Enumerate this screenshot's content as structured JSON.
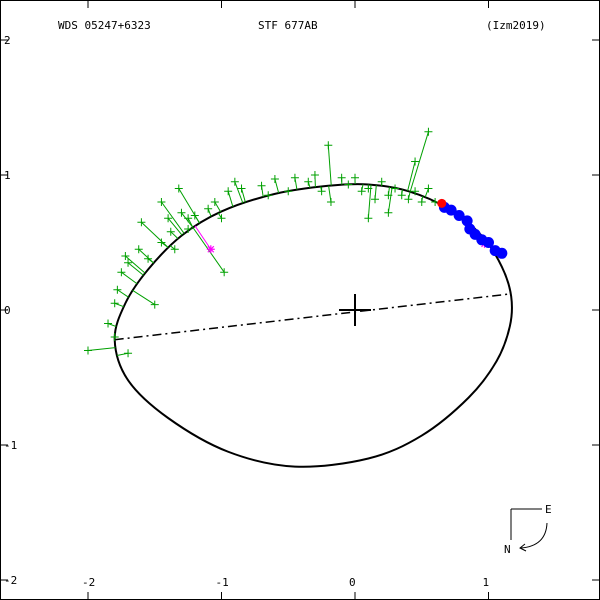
{
  "header": {
    "wds": "WDS 05247+6323",
    "name": "STF 677AB",
    "ref": "(Izm2019)"
  },
  "compass": {
    "east": "E",
    "north": "N"
  },
  "colors": {
    "orbit": "#000000",
    "measure": "#00a000",
    "highlight": "#ff00ff",
    "speckle": "#0000ff",
    "recent": "#ff0000"
  },
  "chart_data": {
    "type": "scatter",
    "title": "",
    "xlabel": "",
    "ylabel": "",
    "xlim": [
      -2.55,
      1.75
    ],
    "ylim": [
      -2.02,
      2.02
    ],
    "x_ticks": [
      -2,
      -1,
      0,
      1
    ],
    "x_tick_labels": [
      "-2",
      "-1",
      "0",
      "1"
    ],
    "y_ticks": [
      2,
      1,
      0,
      -1,
      -2
    ],
    "y_tick_labels": [
      "2",
      "1",
      "0",
      "-1",
      "-2"
    ],
    "grid": false,
    "orbit": {
      "description_points": [
        [
          -1.8,
          -0.22
        ],
        [
          -1.72,
          0.05
        ],
        [
          -1.55,
          0.3
        ],
        [
          -1.3,
          0.55
        ],
        [
          -1.0,
          0.73
        ],
        [
          -0.6,
          0.86
        ],
        [
          -0.2,
          0.92
        ],
        [
          0.1,
          0.93
        ],
        [
          0.4,
          0.88
        ],
        [
          0.7,
          0.75
        ],
        [
          0.95,
          0.55
        ],
        [
          1.1,
          0.32
        ],
        [
          1.17,
          0.1
        ],
        [
          1.16,
          -0.12
        ],
        [
          1.06,
          -0.38
        ],
        [
          0.85,
          -0.65
        ],
        [
          0.5,
          -0.93
        ],
        [
          0.1,
          -1.1
        ],
        [
          -0.45,
          -1.16
        ],
        [
          -0.95,
          -1.05
        ],
        [
          -1.4,
          -0.8
        ],
        [
          -1.7,
          -0.52
        ]
      ],
      "line_of_apsides": [
        [
          -1.8,
          -0.22
        ],
        [
          1.17,
          0.12
        ]
      ]
    },
    "series": [
      {
        "marker": "plus",
        "color": "green",
        "points": [
          [
            -2.0,
            -0.3
          ],
          [
            -1.85,
            -0.1
          ],
          [
            -1.7,
            -0.32
          ],
          [
            -1.8,
            -0.2
          ],
          [
            -1.8,
            0.05
          ],
          [
            -1.78,
            0.15
          ],
          [
            -1.5,
            0.04
          ],
          [
            -1.75,
            0.28
          ],
          [
            -1.7,
            0.35
          ],
          [
            -1.72,
            0.4
          ],
          [
            -1.62,
            0.45
          ],
          [
            -1.55,
            0.38
          ],
          [
            -1.45,
            0.5
          ],
          [
            -1.35,
            0.45
          ],
          [
            -1.38,
            0.58
          ],
          [
            -1.4,
            0.68
          ],
          [
            -1.3,
            0.72
          ],
          [
            -1.2,
            0.7
          ],
          [
            -1.25,
            0.6
          ],
          [
            -1.1,
            0.75
          ],
          [
            -1.0,
            0.68
          ],
          [
            -0.98,
            0.28
          ],
          [
            -1.05,
            0.8
          ],
          [
            -0.95,
            0.88
          ],
          [
            -0.9,
            0.95
          ],
          [
            -0.85,
            0.9
          ],
          [
            -0.7,
            0.92
          ],
          [
            -0.6,
            0.97
          ],
          [
            -0.5,
            0.88
          ],
          [
            -0.45,
            0.98
          ],
          [
            -0.35,
            0.95
          ],
          [
            -0.3,
            1.0
          ],
          [
            -0.25,
            0.88
          ],
          [
            -0.18,
            0.8
          ],
          [
            -0.2,
            1.22
          ],
          [
            -0.1,
            0.98
          ],
          [
            -0.05,
            0.93
          ],
          [
            0.0,
            0.98
          ],
          [
            0.05,
            0.88
          ],
          [
            0.1,
            0.9
          ],
          [
            0.15,
            0.82
          ],
          [
            0.2,
            0.95
          ],
          [
            0.1,
            0.68
          ],
          [
            0.25,
            0.85
          ],
          [
            0.3,
            0.9
          ],
          [
            0.35,
            0.85
          ],
          [
            0.4,
            0.82
          ],
          [
            0.45,
            0.88
          ],
          [
            0.5,
            0.8
          ],
          [
            0.45,
            1.1
          ],
          [
            0.55,
            0.9
          ],
          [
            0.55,
            1.32
          ],
          [
            0.6,
            0.8
          ],
          [
            0.65,
            0.78
          ],
          [
            -1.6,
            0.65
          ],
          [
            -1.45,
            0.8
          ],
          [
            -1.32,
            0.9
          ],
          [
            -1.25,
            0.68
          ],
          [
            -0.65,
            0.85
          ],
          [
            0.25,
            0.72
          ]
        ]
      },
      {
        "marker": "star",
        "color": "magenta",
        "points": [
          [
            -1.08,
            0.45
          ],
          [
            0.97,
            0.49
          ]
        ]
      },
      {
        "marker": "dot",
        "color": "blue",
        "points": [
          [
            0.67,
            0.76
          ],
          [
            0.72,
            0.74
          ],
          [
            0.78,
            0.7
          ],
          [
            0.84,
            0.66
          ],
          [
            0.86,
            0.6
          ],
          [
            0.9,
            0.56
          ],
          [
            0.95,
            0.52
          ],
          [
            1.0,
            0.5
          ],
          [
            1.05,
            0.44
          ],
          [
            1.1,
            0.42
          ]
        ]
      },
      {
        "marker": "dot",
        "color": "red",
        "points": [
          [
            0.65,
            0.79
          ]
        ]
      }
    ]
  }
}
